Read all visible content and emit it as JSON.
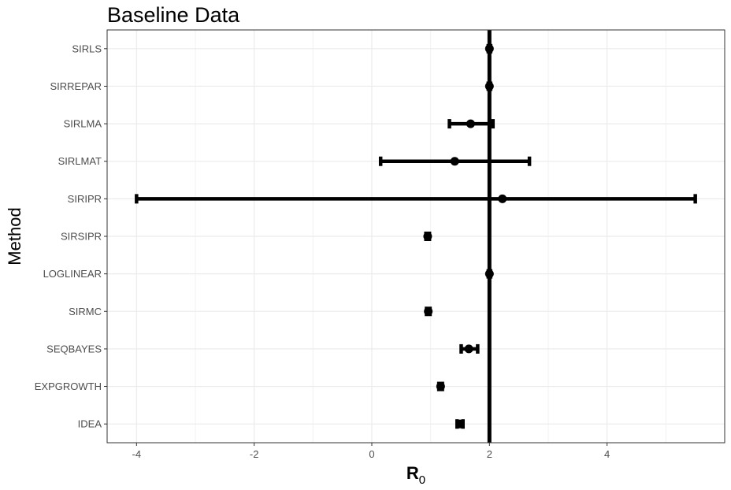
{
  "chart_data": {
    "type": "forest",
    "title": "Baseline Data",
    "xlabel_main": "R",
    "xlabel_sub": "0",
    "ylabel": "Method",
    "xlim": [
      -4.5,
      6.0
    ],
    "x_ticks": [
      -4,
      -2,
      0,
      2,
      4
    ],
    "x_tick_labels": [
      "-4",
      "-2",
      "0",
      "2",
      "4"
    ],
    "reference_line": 2,
    "grid": true,
    "categories": [
      "SIRLS",
      "SIRREPAR",
      "SIRLMA",
      "SIRLMAT",
      "SIRIPR",
      "SIRSIPR",
      "LOGLINEAR",
      "SIRMC",
      "SEQBAYES",
      "EXPGROWTH",
      "IDEA"
    ],
    "estimates": [
      2.0,
      2.0,
      1.68,
      1.41,
      2.22,
      0.95,
      2.0,
      0.96,
      1.65,
      1.17,
      1.5
    ],
    "lower": [
      1.98,
      1.98,
      1.32,
      0.15,
      -4.0,
      0.92,
      1.98,
      0.93,
      1.52,
      1.14,
      1.45
    ],
    "upper": [
      2.02,
      2.02,
      2.06,
      2.68,
      5.5,
      0.98,
      2.02,
      0.99,
      1.8,
      1.2,
      1.55
    ],
    "color": "#000000"
  }
}
